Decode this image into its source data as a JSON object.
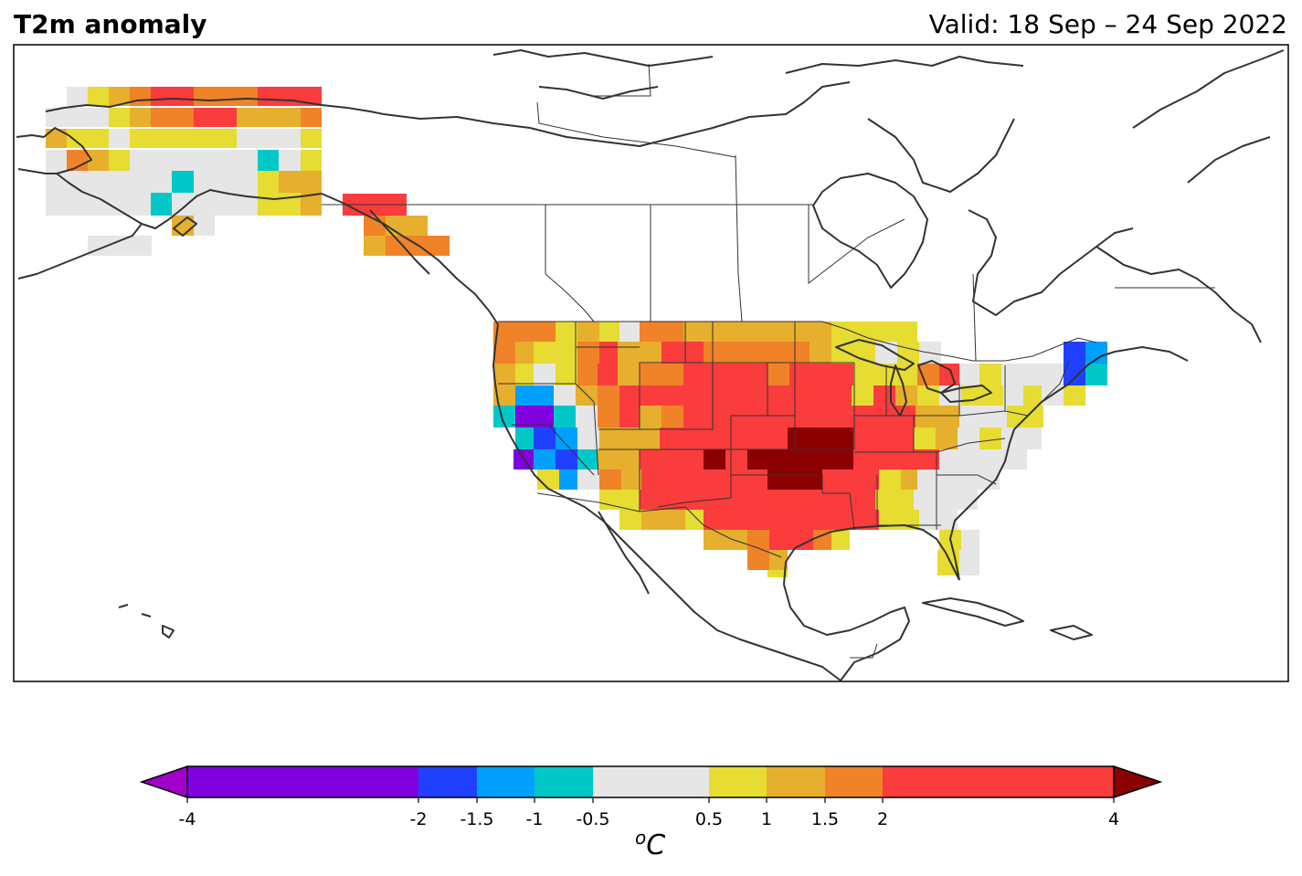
{
  "title": "T2m anomaly",
  "valid": "Valid: 18 Sep – 24 Sep 2022",
  "unit": {
    "sup": "o",
    "base": "C"
  },
  "colorbar": {
    "ticks": [
      "-4",
      "-2",
      "-1.5",
      "-1",
      "-0.5",
      "0.5",
      "1",
      "1.5",
      "2",
      "4"
    ],
    "bins": [
      {
        "range": "-4 to -2",
        "color": "#8000e0"
      },
      {
        "range": "-2 to -1.5",
        "color": "#2040ff"
      },
      {
        "range": "-1.5 to -1",
        "color": "#00a0ff"
      },
      {
        "range": "-1 to -0.5",
        "color": "#00c8c8"
      },
      {
        "range": "-0.5 to 0.5",
        "color": "#e6e6e6"
      },
      {
        "range": "0.5 to 1",
        "color": "#e6dc32"
      },
      {
        "range": "1 to 1.5",
        "color": "#e6af2d"
      },
      {
        "range": "1.5 to 2",
        "color": "#f08228"
      },
      {
        "range": "2 to 4",
        "color": "#fa3c3c"
      }
    ],
    "extend_low_color": "#a000c8",
    "extend_high_color": "#8b0000"
  }
}
